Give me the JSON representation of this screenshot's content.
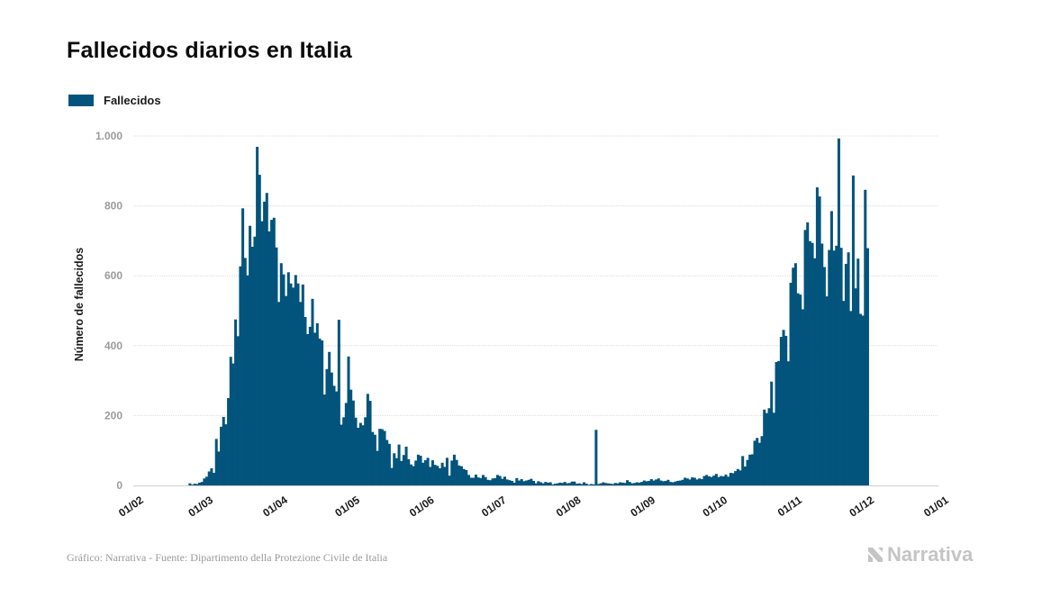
{
  "header": {
    "title": "Fallecidos diarios en Italia"
  },
  "legend": {
    "label": "Fallecidos"
  },
  "footer": {
    "source": "Gráfico: Narrativa - Fuente: Dipartimento della Protezione Civile de Italia"
  },
  "brand": {
    "name": "Narrativa"
  },
  "colors": {
    "bar": "#02547c",
    "grid": "#dcdcdc",
    "tick": "#9b9b9b",
    "logo": "#c4c4c4"
  },
  "chart_data": {
    "type": "bar",
    "title": "Fallecidos diarios en Italia",
    "xlabel": "",
    "ylabel": "Número de fallecidos",
    "x_axis": "date",
    "xlim": [
      "2020-02-01",
      "2021-01-01"
    ],
    "ylim": [
      0,
      1000
    ],
    "yticks": [
      0,
      200,
      400,
      600,
      800,
      1000
    ],
    "ytick_labels": [
      "0",
      "200",
      "400",
      "600",
      "800",
      "1.000"
    ],
    "xtick_dates": [
      "2020-02-01",
      "2020-03-01",
      "2020-04-01",
      "2020-05-01",
      "2020-06-01",
      "2020-07-01",
      "2020-08-01",
      "2020-09-01",
      "2020-10-01",
      "2020-11-01",
      "2020-12-01",
      "2021-01-01"
    ],
    "xtick_labels": [
      "01/02",
      "01/03",
      "01/04",
      "01/05",
      "01/06",
      "01/07",
      "01/08",
      "01/09",
      "01/10",
      "01/11",
      "01/12",
      "01/01"
    ],
    "grid": "horizontal",
    "legend_position": "top-left",
    "series": [
      {
        "name": "Fallecidos",
        "start_date": "2020-02-24",
        "values": [
          6,
          2,
          5,
          4,
          8,
          10,
          20,
          25,
          40,
          49,
          36,
          133,
          97,
          168,
          196,
          175,
          250,
          368,
          349,
          475,
          427,
          627,
          793,
          651,
          601,
          743,
          683,
          712,
          969,
          889,
          756,
          812,
          837,
          727,
          760,
          766,
          681,
          525,
          636,
          604,
          542,
          610,
          578,
          566,
          602,
          578,
          525,
          575,
          482,
          433,
          454,
          534,
          437,
          464,
          420,
          415,
          260,
          333,
          382,
          323,
          285,
          269,
          474,
          174,
          195,
          236,
          369,
          274,
          243,
          194,
          165,
          179,
          172,
          195,
          262,
          242,
          153,
          145,
          99,
          162,
          161,
          156,
          130,
          119,
          50,
          92,
          78,
          117,
          70,
          87,
          111,
          75,
          60,
          55,
          71,
          88,
          85,
          65,
          72,
          79,
          53,
          72,
          59,
          56,
          49,
          65,
          53,
          79,
          28,
          71,
          88,
          73,
          57,
          55,
          47,
          44,
          30,
          22,
          22,
          31,
          23,
          21,
          30,
          24,
          16,
          15,
          20,
          21,
          30,
          27,
          19,
          25,
          17,
          15,
          13,
          8,
          21,
          14,
          18,
          12,
          14,
          16,
          19,
          13,
          6,
          12,
          9,
          6,
          10,
          8,
          9,
          3,
          5,
          6,
          8,
          7,
          10,
          6,
          7,
          11,
          11,
          5,
          6,
          4,
          9,
          5,
          2,
          4,
          3,
          159,
          4,
          6,
          9,
          7,
          6,
          5,
          4,
          7,
          6,
          9,
          8,
          7,
          15,
          10,
          6,
          7,
          9,
          8,
          10,
          14,
          12,
          13,
          18,
          14,
          17,
          20,
          14,
          12,
          13,
          16,
          10,
          9,
          11,
          13,
          14,
          16,
          22,
          20,
          17,
          23,
          22,
          17,
          20,
          18,
          27,
          30,
          26,
          24,
          28,
          33,
          24,
          27,
          26,
          31,
          25,
          36,
          35,
          41,
          47,
          43,
          84,
          54,
          73,
          88,
          89,
          128,
          136,
          122,
          141,
          217,
          207,
          221,
          297,
          208,
          353,
          356,
          425,
          445,
          428,
          355,
          580,
          623,
          636,
          550,
          546,
          504,
          731,
          753,
          699,
          694,
          650,
          853,
          827,
          692,
          625,
          541,
          674,
          785,
          672,
          686,
          993,
          680,
          528,
          634,
          667,
          499,
          887,
          564,
          649,
          491,
          486,
          846,
          679
        ]
      }
    ]
  }
}
